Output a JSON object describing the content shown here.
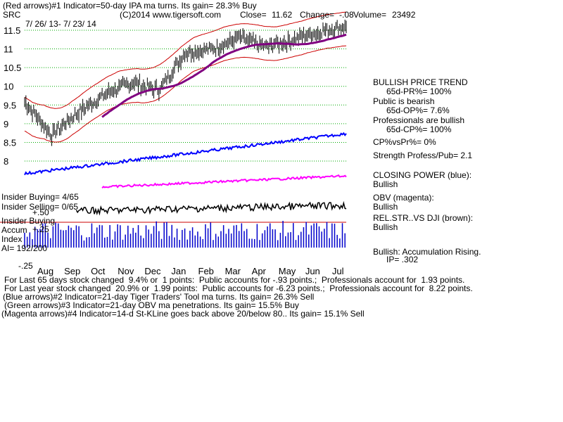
{
  "header": {
    "line1": "(Red arrows)#1 Indicator=50-day IPA ma turns. Its gain= 28.3% Buy",
    "ticker": "SRC",
    "copyright": "(C)2014 www.tigersoft.com",
    "close_label": "Close=",
    "close": "11.62",
    "change_label": "Change=",
    "change": "-.08",
    "volume_label": "Volume=",
    "volume": "23492",
    "date_range": "7/ 26/ 13- 7/ 23/ 14"
  },
  "right_panel": {
    "trend_title": "BULLISH PRICE TREND",
    "pr": "65d-PR%= 100%",
    "public_title": "Public is bearish",
    "op": "65d-OP%= 7.6%",
    "pros_title": "Professionals are bullish",
    "cp": "65d-CP%= 100%",
    "cpvspr": "CP%vsPr%= 0%",
    "strength": "Strength Profess/Pub= 2.1",
    "closing_power": "CLOSING POWER (blue):",
    "closing_power_val": "Bullish",
    "obv": "OBV (magenta):",
    "obv_val": "Bullish",
    "relstr": "REL.STR..VS DJI (brown):",
    "relstr_val": "Bullish",
    "accum": "Bullish: Accumulation Rising.",
    "ip": "IP= .302"
  },
  "left_labels": {
    "insider_buying": "Insider Buying= 4/65",
    "insider_selling": "Insider Selling= 0/65",
    "plus50": "+.50",
    "insider_buying2": "Insider Buying",
    "accum": "Accum",
    "plus25": "+.25",
    "index": "Index",
    "ai": "AI= 192/200",
    "minus25": "-.25"
  },
  "footer": {
    "line1": "For Last 65 days stock changed  9.4% or  1 points:  Public accounts for -.93 points.;  Professionals account for  1.93 points.",
    "line2": "For Last year stock changed  20.9% or  1.99 points:  Public accounts for -6.23 points.;  Professionals account for  8.22 points.",
    "line3": "(Blue arrows)#2 Indicator=21-day Tiger Traders' Tool ma turns. Its gain= 26.3% Sell",
    "line4": "(Green arrows)#3 Indicator=21-day OBV ma penetrations. Its gain= 15.5% Buy",
    "line5": "(Magenta arrows)#4 Indicator=14-d St-KLine goes back above 20/below 80.. Its gain= 15.1% Sell"
  },
  "colors": {
    "price_bars": "#000000",
    "bands": "#cc0000",
    "ma": "#800080",
    "closing_power": "#0000ff",
    "obv": "#ff00ff",
    "rel_str": "#cc0000",
    "accum_bars": "#0000cc",
    "grid": "#00aa00",
    "zero_line": "#cc0000"
  },
  "chart_data": {
    "type": "line",
    "title": "SRC",
    "months": [
      "Aug",
      "Sep",
      "Oct",
      "Nov",
      "Dec",
      "Jan",
      "Feb",
      "Mar",
      "Apr",
      "May",
      "Jun",
      "Jul"
    ],
    "y_ticks": [
      8,
      8.5,
      9,
      9.5,
      10,
      10.5,
      11,
      11.5
    ],
    "ylim": [
      7.7,
      11.8
    ],
    "series": [
      {
        "name": "Price",
        "monthly_close": [
          8.7,
          9.3,
          9.8,
          10.1,
          9.9,
          10.9,
          11.0,
          11.3,
          11.05,
          11.25,
          11.45,
          11.62
        ]
      },
      {
        "name": "CLOSING POWER (blue)",
        "trend": "rising"
      },
      {
        "name": "OBV (magenta)",
        "trend": "rising"
      },
      {
        "name": "REL.STR..VS DJI (brown)",
        "trend": "rising"
      }
    ]
  }
}
